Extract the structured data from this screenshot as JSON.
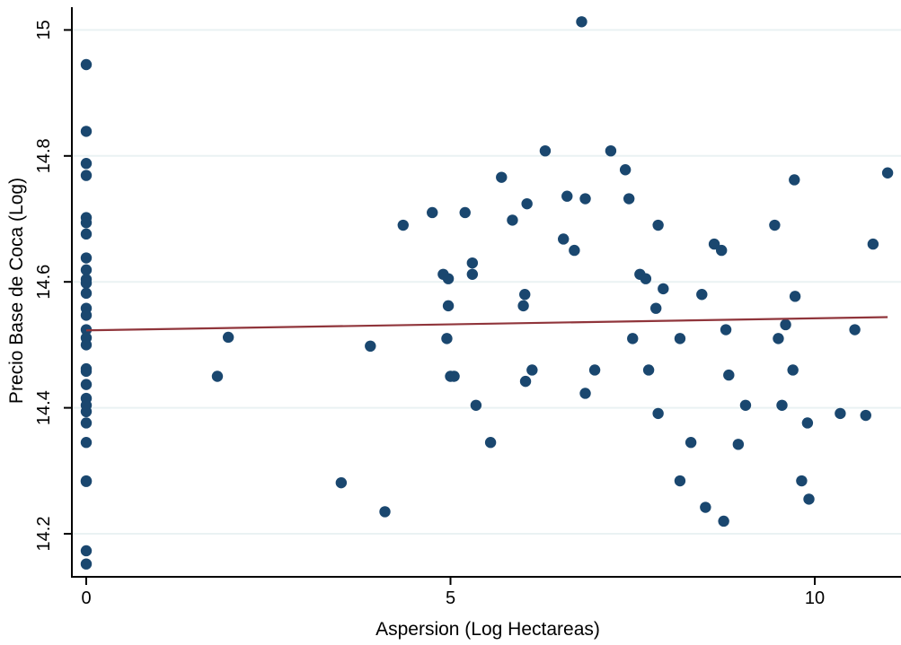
{
  "chart_data": {
    "type": "scatter",
    "xlabel": "Aspersion (Log Hectareas)",
    "ylabel": "Precio Base de Coca (Log)",
    "xlim": [
      -0.4,
      11.2
    ],
    "ylim": [
      14.13,
      15.04
    ],
    "x_ticks": [
      0,
      5,
      10
    ],
    "y_ticks": [
      14.2,
      14.4,
      14.6,
      14.8,
      15
    ],
    "grid": "horizontal",
    "legend": "none",
    "colors": {
      "marker": "#1a476f",
      "fit_line": "#90353b",
      "grid": "#eaf2f3",
      "axis": "#000000"
    },
    "fit_line": {
      "x": [
        0,
        11
      ],
      "y": [
        14.523,
        14.544
      ]
    },
    "points": [
      [
        0,
        14.945
      ],
      [
        0,
        14.839
      ],
      [
        0,
        14.788
      ],
      [
        0,
        14.769
      ],
      [
        0,
        14.702
      ],
      [
        0,
        14.694
      ],
      [
        0,
        14.676
      ],
      [
        0,
        14.638
      ],
      [
        0,
        14.619
      ],
      [
        0,
        14.604
      ],
      [
        0,
        14.598
      ],
      [
        0,
        14.582
      ],
      [
        0,
        14.558
      ],
      [
        0,
        14.547
      ],
      [
        0,
        14.524
      ],
      [
        0,
        14.511
      ],
      [
        0,
        14.5
      ],
      [
        0,
        14.462
      ],
      [
        0,
        14.458
      ],
      [
        0,
        14.437
      ],
      [
        0,
        14.415
      ],
      [
        0,
        14.404
      ],
      [
        0,
        14.394
      ],
      [
        0,
        14.376
      ],
      [
        0,
        14.345
      ],
      [
        0,
        14.284
      ],
      [
        0,
        14.283
      ],
      [
        0,
        14.173
      ],
      [
        0,
        14.152
      ],
      [
        1.8,
        14.45
      ],
      [
        1.95,
        14.512
      ],
      [
        3.5,
        14.281
      ],
      [
        3.9,
        14.498
      ],
      [
        4.1,
        14.235
      ],
      [
        4.35,
        14.69
      ],
      [
        4.75,
        14.71
      ],
      [
        4.9,
        14.612
      ],
      [
        4.95,
        14.51
      ],
      [
        4.97,
        14.562
      ],
      [
        4.97,
        14.605
      ],
      [
        5.0,
        14.45
      ],
      [
        5.05,
        14.45
      ],
      [
        5.2,
        14.71
      ],
      [
        5.3,
        14.612
      ],
      [
        5.3,
        14.63
      ],
      [
        5.35,
        14.404
      ],
      [
        5.55,
        14.345
      ],
      [
        5.7,
        14.766
      ],
      [
        5.85,
        14.698
      ],
      [
        6.0,
        14.562
      ],
      [
        6.02,
        14.58
      ],
      [
        6.03,
        14.442
      ],
      [
        6.05,
        14.724
      ],
      [
        6.12,
        14.46
      ],
      [
        6.3,
        14.808
      ],
      [
        6.55,
        14.668
      ],
      [
        6.6,
        14.736
      ],
      [
        6.7,
        14.65
      ],
      [
        6.8,
        15.013
      ],
      [
        6.85,
        14.732
      ],
      [
        6.85,
        14.423
      ],
      [
        6.98,
        14.46
      ],
      [
        7.2,
        14.808
      ],
      [
        7.4,
        14.778
      ],
      [
        7.45,
        14.732
      ],
      [
        7.5,
        14.51
      ],
      [
        7.6,
        14.612
      ],
      [
        7.68,
        14.605
      ],
      [
        7.72,
        14.46
      ],
      [
        7.82,
        14.558
      ],
      [
        7.85,
        14.391
      ],
      [
        7.85,
        14.69
      ],
      [
        7.92,
        14.589
      ],
      [
        8.15,
        14.284
      ],
      [
        8.15,
        14.51
      ],
      [
        8.3,
        14.345
      ],
      [
        8.45,
        14.58
      ],
      [
        8.5,
        14.242
      ],
      [
        8.62,
        14.66
      ],
      [
        8.72,
        14.65
      ],
      [
        8.75,
        14.22
      ],
      [
        8.78,
        14.524
      ],
      [
        8.82,
        14.452
      ],
      [
        8.95,
        14.342
      ],
      [
        9.05,
        14.404
      ],
      [
        9.45,
        14.69
      ],
      [
        9.5,
        14.51
      ],
      [
        9.55,
        14.404
      ],
      [
        9.6,
        14.532
      ],
      [
        9.7,
        14.46
      ],
      [
        9.72,
        14.762
      ],
      [
        9.73,
        14.577
      ],
      [
        9.82,
        14.284
      ],
      [
        9.9,
        14.376
      ],
      [
        9.92,
        14.255
      ],
      [
        10.35,
        14.391
      ],
      [
        10.55,
        14.524
      ],
      [
        10.7,
        14.388
      ],
      [
        10.8,
        14.66
      ],
      [
        11.0,
        14.773
      ]
    ]
  }
}
